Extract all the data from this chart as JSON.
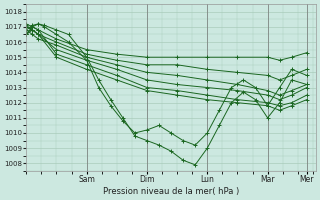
{
  "xlabel": "Pression niveau de la mer( hPa )",
  "bg_color": "#cce8e0",
  "grid_color": "#aaccbb",
  "line_color": "#1a6620",
  "ylim": [
    1007.5,
    1018.5
  ],
  "yticks": [
    1008,
    1009,
    1010,
    1011,
    1012,
    1013,
    1014,
    1015,
    1016,
    1017,
    1018
  ],
  "xlim": [
    0,
    4.8
  ],
  "tick_label_positions": [
    1.0,
    2.0,
    3.0,
    4.0,
    4.65
  ],
  "tick_labels": [
    "Sam",
    "Dim",
    "Lun",
    "Mar",
    "Mer"
  ],
  "vline_positions": [
    1.0,
    2.0,
    3.0,
    4.0,
    4.65
  ],
  "lines": [
    {
      "x": [
        0.0,
        0.1,
        0.2,
        0.3,
        0.5,
        0.7,
        1.0,
        1.2,
        1.4,
        1.6,
        1.8,
        2.0,
        2.2,
        2.4,
        2.6,
        2.8,
        3.0,
        3.2,
        3.4,
        3.6,
        3.8,
        4.0,
        4.2,
        4.4,
        4.65
      ],
      "y": [
        1016.5,
        1017.0,
        1017.2,
        1017.1,
        1016.8,
        1016.5,
        1015.0,
        1013.5,
        1012.2,
        1011.0,
        1009.8,
        1009.5,
        1009.2,
        1008.8,
        1008.2,
        1007.9,
        1009.0,
        1010.5,
        1012.0,
        1012.7,
        1012.2,
        1011.0,
        1012.0,
        1013.5,
        1013.2
      ]
    },
    {
      "x": [
        0.0,
        0.1,
        0.2,
        0.3,
        0.5,
        0.7,
        1.0,
        1.2,
        1.4,
        1.6,
        1.8,
        2.0,
        2.2,
        2.4,
        2.6,
        2.8,
        3.0,
        3.2,
        3.4,
        3.6,
        3.8,
        4.0,
        4.2,
        4.4,
        4.65
      ],
      "y": [
        1016.8,
        1017.1,
        1017.2,
        1017.0,
        1016.5,
        1016.0,
        1014.8,
        1013.0,
        1011.8,
        1010.8,
        1010.0,
        1010.2,
        1010.5,
        1010.0,
        1009.5,
        1009.2,
        1010.0,
        1011.5,
        1013.0,
        1013.5,
        1013.0,
        1011.8,
        1013.0,
        1014.2,
        1013.8
      ]
    },
    {
      "x": [
        0.0,
        0.1,
        0.2,
        0.5,
        1.0,
        1.5,
        2.0,
        2.5,
        3.0,
        3.5,
        4.0,
        4.2,
        4.4,
        4.65
      ],
      "y": [
        1016.5,
        1017.0,
        1016.8,
        1016.2,
        1015.5,
        1015.2,
        1015.0,
        1015.0,
        1015.0,
        1015.0,
        1015.0,
        1014.8,
        1015.0,
        1015.3
      ]
    },
    {
      "x": [
        0.0,
        0.1,
        0.2,
        0.5,
        1.0,
        1.5,
        2.0,
        2.5,
        3.0,
        3.5,
        4.0,
        4.2,
        4.4,
        4.65
      ],
      "y": [
        1016.5,
        1016.8,
        1016.5,
        1016.0,
        1015.2,
        1014.8,
        1014.5,
        1014.5,
        1014.2,
        1014.0,
        1013.8,
        1013.5,
        1013.8,
        1014.2
      ]
    },
    {
      "x": [
        0.0,
        0.1,
        0.2,
        0.5,
        1.0,
        1.5,
        2.0,
        2.5,
        3.0,
        3.5,
        4.0,
        4.2,
        4.4,
        4.65
      ],
      "y": [
        1016.8,
        1016.5,
        1016.2,
        1015.8,
        1015.0,
        1014.5,
        1014.0,
        1013.8,
        1013.5,
        1013.2,
        1012.8,
        1012.5,
        1012.8,
        1013.2
      ]
    },
    {
      "x": [
        0.0,
        0.1,
        0.2,
        0.5,
        1.0,
        1.5,
        2.0,
        2.5,
        3.0,
        3.5,
        4.0,
        4.2,
        4.4,
        4.65
      ],
      "y": [
        1017.0,
        1016.8,
        1016.5,
        1015.5,
        1014.8,
        1014.2,
        1013.5,
        1013.2,
        1013.0,
        1012.8,
        1012.5,
        1012.2,
        1012.5,
        1013.0
      ]
    },
    {
      "x": [
        0.0,
        0.1,
        0.2,
        0.5,
        1.0,
        1.5,
        2.0,
        2.5,
        3.0,
        3.5,
        4.0,
        4.2,
        4.4,
        4.65
      ],
      "y": [
        1017.2,
        1017.0,
        1016.8,
        1015.2,
        1014.5,
        1013.8,
        1013.0,
        1012.8,
        1012.5,
        1012.2,
        1012.0,
        1011.8,
        1012.0,
        1012.5
      ]
    },
    {
      "x": [
        0.0,
        0.1,
        0.2,
        0.5,
        1.0,
        1.5,
        2.0,
        2.5,
        3.0,
        3.5,
        4.0,
        4.2,
        4.4,
        4.65
      ],
      "y": [
        1017.1,
        1016.8,
        1016.5,
        1015.0,
        1014.2,
        1013.5,
        1012.8,
        1012.5,
        1012.2,
        1012.0,
        1011.8,
        1011.5,
        1011.8,
        1012.2
      ]
    }
  ]
}
